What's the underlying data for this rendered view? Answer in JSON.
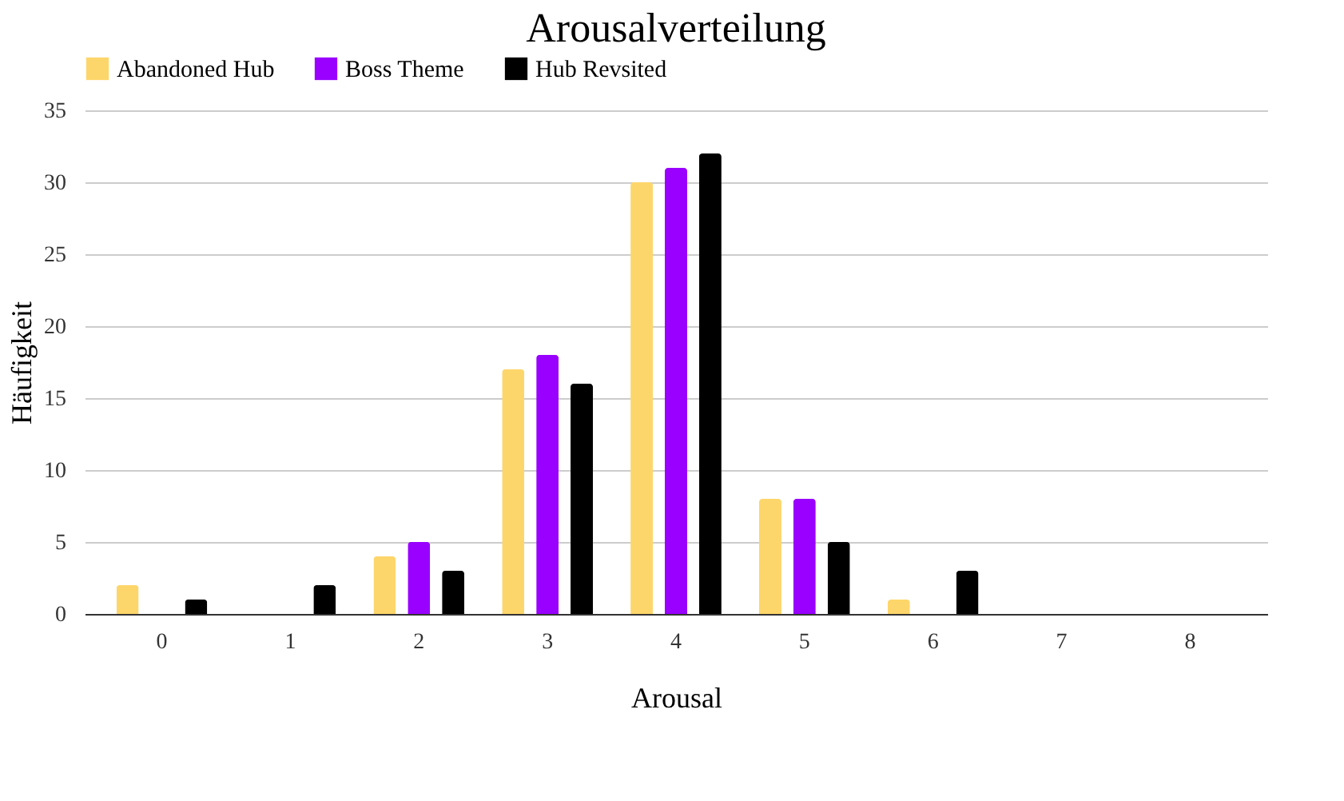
{
  "chart_data": {
    "type": "bar",
    "title": "Arousalverteilung",
    "xlabel": "Arousal",
    "ylabel": "Häufigkeit",
    "categories": [
      "0",
      "1",
      "2",
      "3",
      "4",
      "5",
      "6",
      "7",
      "8"
    ],
    "series": [
      {
        "name": "Abandoned Hub",
        "color": "#fdd66b",
        "values": [
          2,
          0,
          4,
          17,
          30,
          8,
          1,
          0,
          0
        ]
      },
      {
        "name": "Boss Theme",
        "color": "#9900ff",
        "values": [
          0,
          0,
          5,
          18,
          31,
          8,
          0,
          0,
          0
        ]
      },
      {
        "name": "Hub Revsited",
        "color": "#000000",
        "values": [
          1,
          2,
          3,
          16,
          32,
          5,
          3,
          0,
          0
        ]
      }
    ],
    "ylim": [
      0,
      35
    ],
    "yticks": [
      0,
      5,
      10,
      15,
      20,
      25,
      30,
      35
    ],
    "grid": "y",
    "legend": "top"
  }
}
